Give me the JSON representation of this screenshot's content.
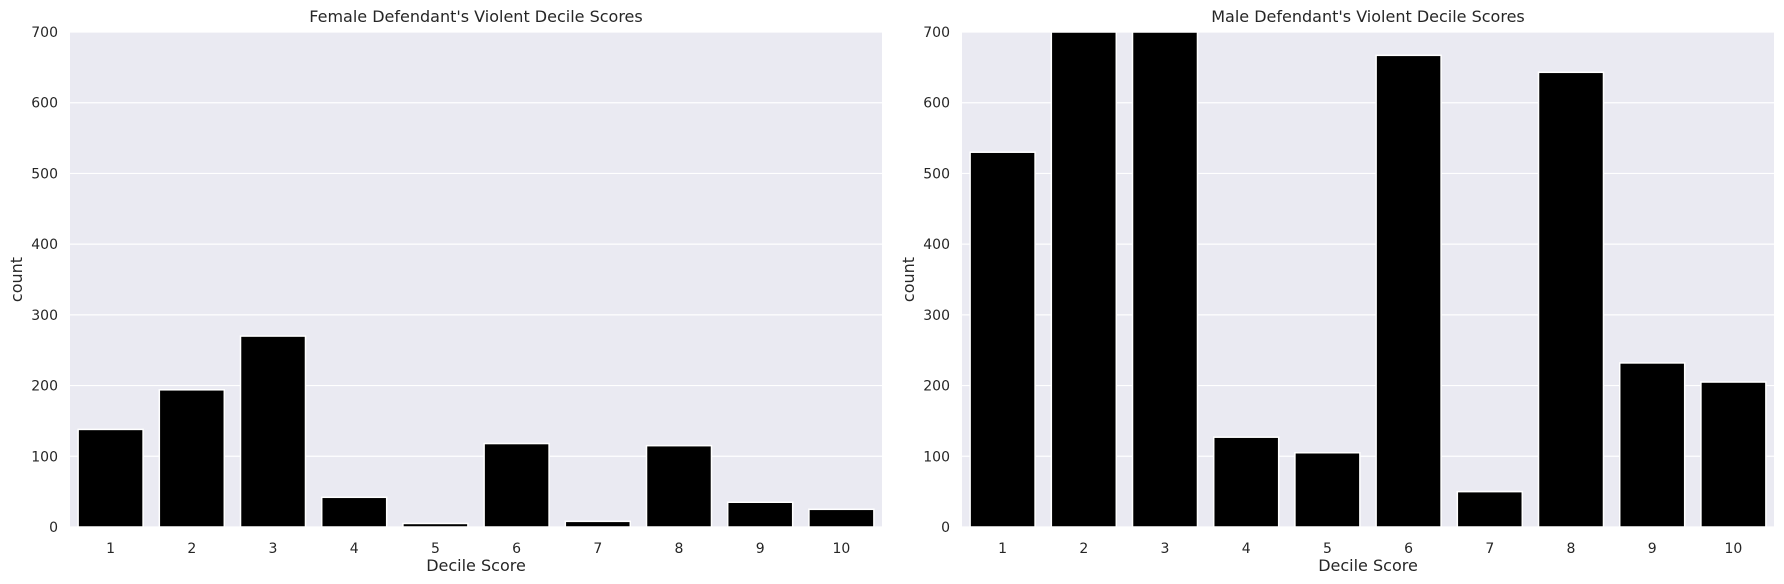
{
  "chart_data": [
    {
      "type": "bar",
      "title": "Female Defendant's Violent Decile Scores",
      "xlabel": "Decile Score",
      "ylabel": "count",
      "categories": [
        "1",
        "2",
        "3",
        "4",
        "5",
        "6",
        "7",
        "8",
        "9",
        "10"
      ],
      "values": [
        138,
        194,
        270,
        42,
        5,
        118,
        8,
        115,
        35,
        25
      ],
      "ylim": [
        0,
        700
      ],
      "yticks": [
        0,
        100,
        200,
        300,
        400,
        500,
        600,
        700
      ],
      "grid": true,
      "bar_color": "#000000",
      "background_color": "#eaeaf2"
    },
    {
      "type": "bar",
      "title": "Male Defendant's Violent Decile Scores",
      "xlabel": "Decile Score",
      "ylabel": "count",
      "categories": [
        "1",
        "2",
        "3",
        "4",
        "5",
        "6",
        "7",
        "8",
        "9",
        "10"
      ],
      "values": [
        530,
        705,
        705,
        127,
        105,
        667,
        50,
        643,
        232,
        205
      ],
      "ylim": [
        0,
        700
      ],
      "yticks": [
        0,
        100,
        200,
        300,
        400,
        500,
        600,
        700
      ],
      "grid": true,
      "bar_color": "#000000",
      "background_color": "#eaeaf2"
    }
  ]
}
